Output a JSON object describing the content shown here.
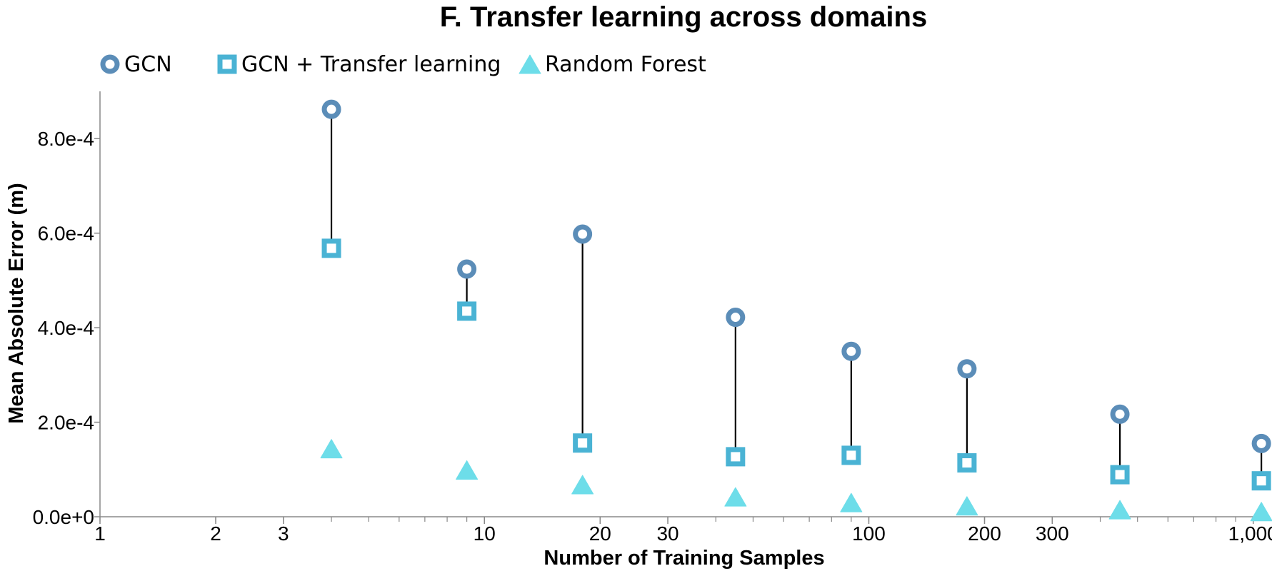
{
  "chart_data": {
    "type": "scatter",
    "title": "F. Transfer learning across domains",
    "xlabel": "Number of Training Samples",
    "ylabel": "Mean Absolute Error (m)",
    "x_scale": "log",
    "xlim": [
      1,
      1100
    ],
    "ylim": [
      0,
      0.0009
    ],
    "x_ticks": [
      1,
      2,
      3,
      10,
      20,
      30,
      100,
      200,
      300,
      1000
    ],
    "x_tick_labels": [
      "1",
      "2",
      "3",
      "10",
      "20",
      "30",
      "100",
      "200",
      "300",
      "1,000"
    ],
    "y_ticks": [
      0,
      0.0002,
      0.0004,
      0.0006,
      0.0008
    ],
    "y_tick_labels": [
      "0.0e+0",
      "2.0e-4",
      "4.0e-4",
      "6.0e-4",
      "8.0e-4"
    ],
    "legend_position": "top-left",
    "grid": false,
    "x": [
      4,
      9,
      18,
      45,
      90,
      180,
      450,
      1050
    ],
    "series": [
      {
        "name": "GCN",
        "marker": "circle",
        "color": "#5b8db8",
        "values": [
          0.000862,
          0.000524,
          0.000598,
          0.000422,
          0.00035,
          0.000313,
          0.000217,
          0.000155
        ]
      },
      {
        "name": "GCN + Transfer learning",
        "marker": "square",
        "color": "#4ab3d4",
        "values": [
          0.000568,
          0.000435,
          0.000156,
          0.000127,
          0.00013,
          0.000114,
          8.9e-05,
          7.6e-05
        ]
      },
      {
        "name": "Random Forest",
        "marker": "triangle",
        "color": "#6ddde9",
        "values": [
          0.000144,
          9.9e-05,
          6.8e-05,
          4.2e-05,
          3e-05,
          2.3e-05,
          1.5e-05,
          1.1e-05
        ]
      }
    ],
    "connector": {
      "from": "GCN",
      "to": "GCN + Transfer learning",
      "color": "#000000"
    }
  }
}
